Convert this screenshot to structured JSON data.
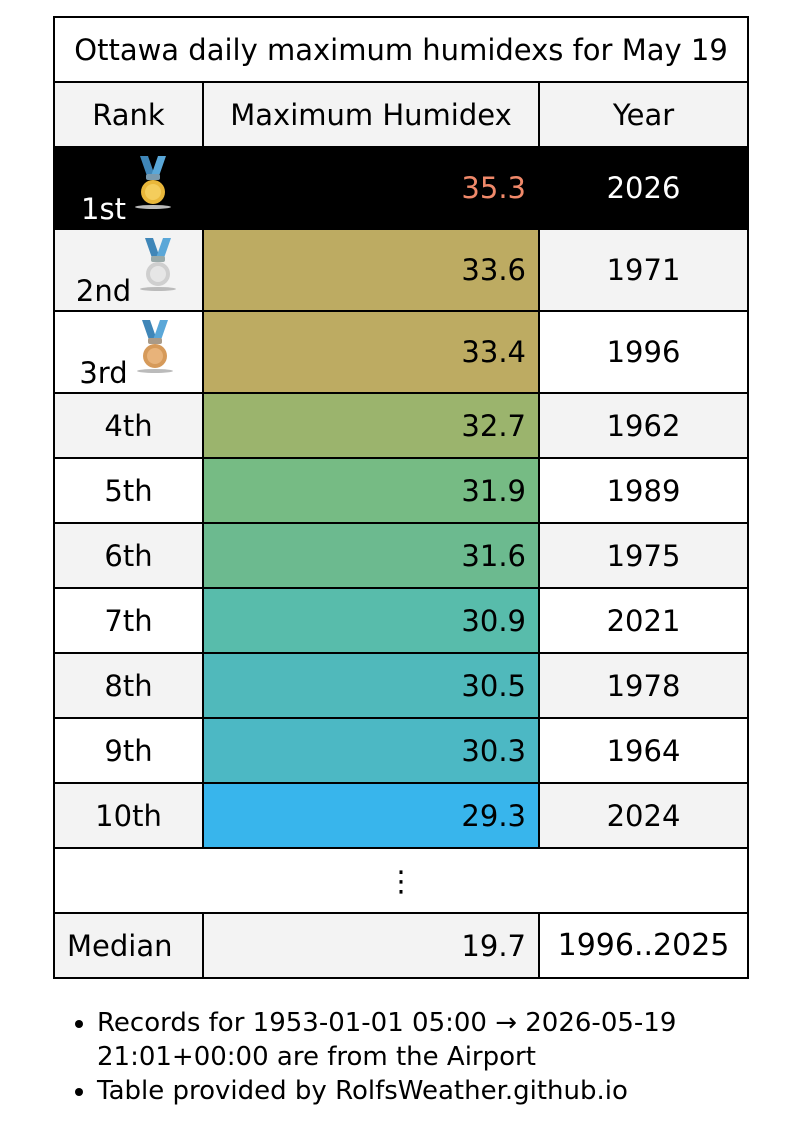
{
  "table": {
    "title": "Ottawa daily maximum humidexs for May 19",
    "headers": {
      "rank": "Rank",
      "value": "Maximum Humidex",
      "year": "Year"
    },
    "rows": [
      {
        "rank": "1st",
        "value": "35.3",
        "year": "2026",
        "medal": "gold-medal-icon",
        "color": "#000000"
      },
      {
        "rank": "2nd",
        "value": "33.6",
        "year": "1971",
        "medal": "silver-medal-icon",
        "color": "#bdab62"
      },
      {
        "rank": "3rd",
        "value": "33.4",
        "year": "1996",
        "medal": "bronze-medal-icon",
        "color": "#bdab62"
      },
      {
        "rank": "4th",
        "value": "32.7",
        "year": "1962",
        "color": "#9bb46d"
      },
      {
        "rank": "5th",
        "value": "31.9",
        "year": "1989",
        "color": "#76bb84"
      },
      {
        "rank": "6th",
        "value": "31.6",
        "year": "1975",
        "color": "#6cba8f"
      },
      {
        "rank": "7th",
        "value": "30.9",
        "year": "2021",
        "color": "#58bcab"
      },
      {
        "rank": "8th",
        "value": "30.5",
        "year": "1978",
        "color": "#50b9bb"
      },
      {
        "rank": "9th",
        "value": "30.3",
        "year": "1964",
        "color": "#4cb8c4"
      },
      {
        "rank": "10th",
        "value": "29.3",
        "year": "2024",
        "color": "#38b5ec"
      }
    ],
    "ellipsis": "⋮",
    "median": {
      "label": "Median",
      "value": "19.7",
      "years": "1996..2025"
    }
  },
  "notes": [
    "Records for 1953-01-01 05:00 → 2026-05-19 21:01+00:00 are from the Airport",
    "Table provided by RolfsWeather.github.io"
  ],
  "colors": {
    "header_bg": "#f3f3f3",
    "record_row_bg": "#000000",
    "record_value_text": "#f0896a",
    "medal_gold": "#e9b73a",
    "medal_silver": "#d8d8d8",
    "medal_bronze": "#d69a5a",
    "medal_ribbon": "#5aa7d8"
  }
}
